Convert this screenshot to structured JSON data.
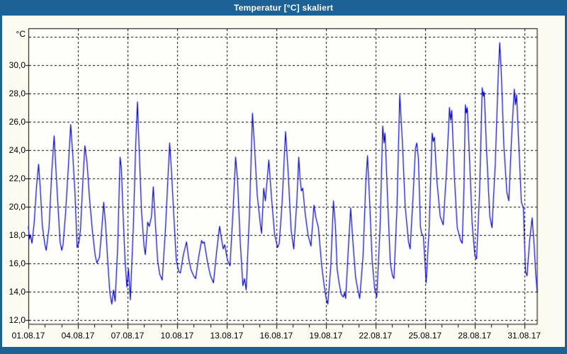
{
  "window": {
    "title": "Temperatur [°C] skaliert"
  },
  "colors": {
    "frame_blue": "#1d6296",
    "title_text": "#ffffff",
    "line_blue": "#0000cc",
    "grid_black": "#000000",
    "outer_bg": "#fbfbf2",
    "plot_bg": "#fefefa"
  },
  "chart_data": {
    "type": "line",
    "title": "Temperatur [°C] skaliert",
    "ylabel": "°C",
    "xlabel": "",
    "grid": "dashed, on",
    "legend": "none",
    "ylim": [
      11.65,
      32.6
    ],
    "xlim_days": [
      0,
      30.81
    ],
    "y_ticks": [
      12,
      14,
      16,
      18,
      20,
      22,
      24,
      26,
      28,
      30
    ],
    "y_tick_labels": [
      "12,0",
      "14,0",
      "16,0",
      "18,0",
      "20,0",
      "22,0",
      "24,0",
      "26,0",
      "28,0",
      "30,0"
    ],
    "y_grid_values": [
      12,
      14,
      16,
      18,
      20,
      22,
      24,
      26,
      28,
      30,
      32
    ],
    "x_major_tick_days": [
      0,
      3,
      6,
      9,
      12,
      15,
      18,
      21,
      24,
      27,
      30
    ],
    "x_tick_labels": [
      "01.08.17",
      "04.08.17",
      "07.08.17",
      "10.08.17",
      "13.08.17",
      "16.08.17",
      "19.08.17",
      "22.08.17",
      "25.08.17",
      "28.08.17",
      "31.08.17"
    ],
    "x_minor_tick_step_days": 1,
    "series": [
      {
        "name": "Temperatur",
        "unit": "°C",
        "x_unit": "days since 01.08.17 00:00",
        "points": [
          [
            0.0,
            18.6
          ],
          [
            0.06,
            17.7
          ],
          [
            0.12,
            18.0
          ],
          [
            0.22,
            17.4
          ],
          [
            0.35,
            18.8
          ],
          [
            0.5,
            21.5
          ],
          [
            0.62,
            23.0
          ],
          [
            0.72,
            21.3
          ],
          [
            0.85,
            18.6
          ],
          [
            1.0,
            17.3
          ],
          [
            1.08,
            16.9
          ],
          [
            1.25,
            18.5
          ],
          [
            1.42,
            22.5
          ],
          [
            1.56,
            25.0
          ],
          [
            1.66,
            22.8
          ],
          [
            1.8,
            19.9
          ],
          [
            1.92,
            17.5
          ],
          [
            2.02,
            16.9
          ],
          [
            2.1,
            17.3
          ],
          [
            2.25,
            19.5
          ],
          [
            2.42,
            22.8
          ],
          [
            2.56,
            25.8
          ],
          [
            2.68,
            23.8
          ],
          [
            2.82,
            21.0
          ],
          [
            2.95,
            17.1
          ],
          [
            3.05,
            17.4
          ],
          [
            3.15,
            18.3
          ],
          [
            3.3,
            21.8
          ],
          [
            3.42,
            24.3
          ],
          [
            3.55,
            23.1
          ],
          [
            3.7,
            20.6
          ],
          [
            3.88,
            18.2
          ],
          [
            4.05,
            16.5
          ],
          [
            4.15,
            16.0
          ],
          [
            4.3,
            16.4
          ],
          [
            4.45,
            18.5
          ],
          [
            4.56,
            20.3
          ],
          [
            4.68,
            18.6
          ],
          [
            4.8,
            16.2
          ],
          [
            4.93,
            13.9
          ],
          [
            5.05,
            13.1
          ],
          [
            5.15,
            14.1
          ],
          [
            5.25,
            13.3
          ],
          [
            5.4,
            17.0
          ],
          [
            5.55,
            23.5
          ],
          [
            5.63,
            22.7
          ],
          [
            5.72,
            19.8
          ],
          [
            5.85,
            16.2
          ],
          [
            5.96,
            14.3
          ],
          [
            6.06,
            15.6
          ],
          [
            6.17,
            13.4
          ],
          [
            6.35,
            18.5
          ],
          [
            6.5,
            24.5
          ],
          [
            6.6,
            27.4
          ],
          [
            6.7,
            24.2
          ],
          [
            6.85,
            19.6
          ],
          [
            7.0,
            17.2
          ],
          [
            7.08,
            16.6
          ],
          [
            7.22,
            18.9
          ],
          [
            7.32,
            18.6
          ],
          [
            7.45,
            19.3
          ],
          [
            7.56,
            21.4
          ],
          [
            7.68,
            18.9
          ],
          [
            7.82,
            16.2
          ],
          [
            7.95,
            15.2
          ],
          [
            8.1,
            14.8
          ],
          [
            8.3,
            18.5
          ],
          [
            8.55,
            24.5
          ],
          [
            8.66,
            22.5
          ],
          [
            8.78,
            19.8
          ],
          [
            8.95,
            16.2
          ],
          [
            9.1,
            15.4
          ],
          [
            9.2,
            15.3
          ],
          [
            9.38,
            16.6
          ],
          [
            9.57,
            17.5
          ],
          [
            9.7,
            16.3
          ],
          [
            9.85,
            15.5
          ],
          [
            10.0,
            15.1
          ],
          [
            10.12,
            14.9
          ],
          [
            10.3,
            16.4
          ],
          [
            10.48,
            17.6
          ],
          [
            10.56,
            17.4
          ],
          [
            10.64,
            17.5
          ],
          [
            10.85,
            16.0
          ],
          [
            11.02,
            15.1
          ],
          [
            11.2,
            14.6
          ],
          [
            11.4,
            16.9
          ],
          [
            11.57,
            18.6
          ],
          [
            11.7,
            17.6
          ],
          [
            11.79,
            17.0
          ],
          [
            11.88,
            17.3
          ],
          [
            12.05,
            16.2
          ],
          [
            12.2,
            15.8
          ],
          [
            12.38,
            19.6
          ],
          [
            12.54,
            23.5
          ],
          [
            12.66,
            21.8
          ],
          [
            12.82,
            17.5
          ],
          [
            12.98,
            14.4
          ],
          [
            13.08,
            14.9
          ],
          [
            13.18,
            14.1
          ],
          [
            13.38,
            19.5
          ],
          [
            13.56,
            26.6
          ],
          [
            13.68,
            24.3
          ],
          [
            13.85,
            20.8
          ],
          [
            14.05,
            18.6
          ],
          [
            14.11,
            18.1
          ],
          [
            14.24,
            21.3
          ],
          [
            14.34,
            20.4
          ],
          [
            14.55,
            23.3
          ],
          [
            14.7,
            20.8
          ],
          [
            14.9,
            18.0
          ],
          [
            15.08,
            17.1
          ],
          [
            15.18,
            17.4
          ],
          [
            15.35,
            20.2
          ],
          [
            15.56,
            25.3
          ],
          [
            15.7,
            22.8
          ],
          [
            15.9,
            18.3
          ],
          [
            16.06,
            17.0
          ],
          [
            16.25,
            20.5
          ],
          [
            16.36,
            23.5
          ],
          [
            16.44,
            22.0
          ],
          [
            16.52,
            21.1
          ],
          [
            16.6,
            21.3
          ],
          [
            16.75,
            19.5
          ],
          [
            16.92,
            18.0
          ],
          [
            17.1,
            17.2
          ],
          [
            17.28,
            20.1
          ],
          [
            17.4,
            19.2
          ],
          [
            17.55,
            18.5
          ],
          [
            17.75,
            15.8
          ],
          [
            17.9,
            14.4
          ],
          [
            18.02,
            13.5
          ],
          [
            18.12,
            13.1
          ],
          [
            18.3,
            15.8
          ],
          [
            18.46,
            20.4
          ],
          [
            18.58,
            18.6
          ],
          [
            18.68,
            15.6
          ],
          [
            18.8,
            14.6
          ],
          [
            18.93,
            13.8
          ],
          [
            19.05,
            13.6
          ],
          [
            19.13,
            13.9
          ],
          [
            19.2,
            13.5
          ],
          [
            19.35,
            16.8
          ],
          [
            19.5,
            19.9
          ],
          [
            19.63,
            17.6
          ],
          [
            19.8,
            15.0
          ],
          [
            19.92,
            14.2
          ],
          [
            20.05,
            13.5
          ],
          [
            20.25,
            16.5
          ],
          [
            20.42,
            21.8
          ],
          [
            20.52,
            23.6
          ],
          [
            20.64,
            20.6
          ],
          [
            20.8,
            16.2
          ],
          [
            20.95,
            14.2
          ],
          [
            21.08,
            13.6
          ],
          [
            21.28,
            18.5
          ],
          [
            21.44,
            25.7
          ],
          [
            21.52,
            24.5
          ],
          [
            21.58,
            25.2
          ],
          [
            21.72,
            21.0
          ],
          [
            21.9,
            16.0
          ],
          [
            22.03,
            15.1
          ],
          [
            22.12,
            14.9
          ],
          [
            22.3,
            19.8
          ],
          [
            22.47,
            27.9
          ],
          [
            22.62,
            24.8
          ],
          [
            22.8,
            20.0
          ],
          [
            23.0,
            17.5
          ],
          [
            23.1,
            17.0
          ],
          [
            23.28,
            20.8
          ],
          [
            23.42,
            24.1
          ],
          [
            23.5,
            24.5
          ],
          [
            23.6,
            23.4
          ],
          [
            23.72,
            18.6
          ],
          [
            23.79,
            18.1
          ],
          [
            23.9,
            17.9
          ],
          [
            24.07,
            14.6
          ],
          [
            24.25,
            18.5
          ],
          [
            24.43,
            25.2
          ],
          [
            24.5,
            24.6
          ],
          [
            24.57,
            24.9
          ],
          [
            24.72,
            21.8
          ],
          [
            24.92,
            19.3
          ],
          [
            25.1,
            18.7
          ],
          [
            25.3,
            22.5
          ],
          [
            25.48,
            27.0
          ],
          [
            25.55,
            26.1
          ],
          [
            25.62,
            26.8
          ],
          [
            25.78,
            22.0
          ],
          [
            25.95,
            18.5
          ],
          [
            26.15,
            17.6
          ],
          [
            26.25,
            17.4
          ],
          [
            26.36,
            21.5
          ],
          [
            26.44,
            27.2
          ],
          [
            26.5,
            26.6
          ],
          [
            26.56,
            27.0
          ],
          [
            26.7,
            23.2
          ],
          [
            26.85,
            18.8
          ],
          [
            27.02,
            16.5
          ],
          [
            27.12,
            16.3
          ],
          [
            27.3,
            21.0
          ],
          [
            27.46,
            28.4
          ],
          [
            27.53,
            27.8
          ],
          [
            27.58,
            28.1
          ],
          [
            27.73,
            23.8
          ],
          [
            27.92,
            19.3
          ],
          [
            28.05,
            18.5
          ],
          [
            28.25,
            23.0
          ],
          [
            28.42,
            29.0
          ],
          [
            28.52,
            31.6
          ],
          [
            28.62,
            29.3
          ],
          [
            28.77,
            24.3
          ],
          [
            28.95,
            21.0
          ],
          [
            29.07,
            20.4
          ],
          [
            29.25,
            25.2
          ],
          [
            29.4,
            28.3
          ],
          [
            29.47,
            27.2
          ],
          [
            29.54,
            27.9
          ],
          [
            29.68,
            24.2
          ],
          [
            29.83,
            20.3
          ],
          [
            29.95,
            19.9
          ],
          [
            30.08,
            15.4
          ],
          [
            30.17,
            15.1
          ],
          [
            30.33,
            17.6
          ],
          [
            30.48,
            19.2
          ],
          [
            30.6,
            17.3
          ],
          [
            30.7,
            15.2
          ],
          [
            30.79,
            13.9
          ]
        ]
      }
    ]
  }
}
